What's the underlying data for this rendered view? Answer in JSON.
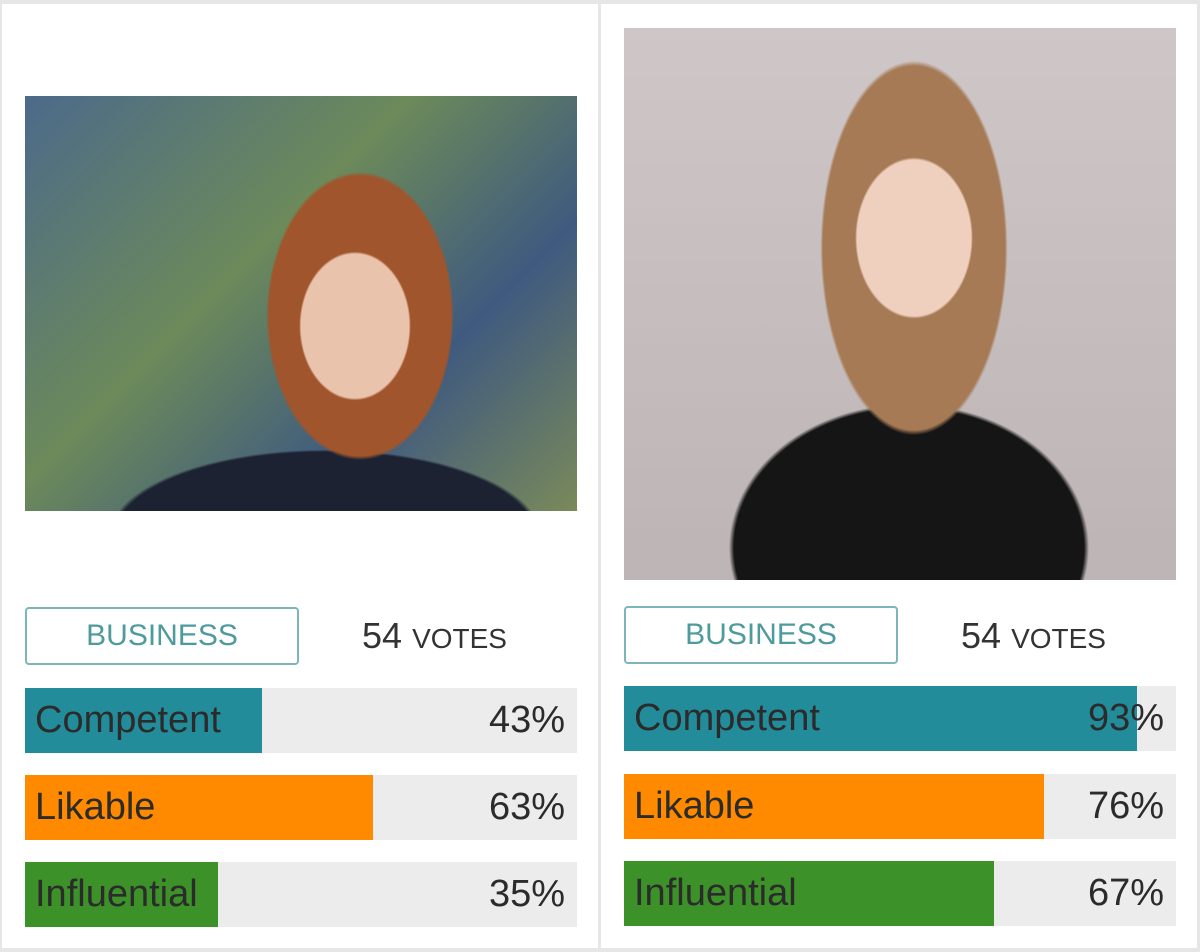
{
  "cards": [
    {
      "category": "BUSINESS",
      "votes": "54",
      "votes_label": "VOTES",
      "bars": [
        {
          "label": "Competent",
          "percent": 43,
          "text": "43%",
          "color": "#238c9b"
        },
        {
          "label": "Likable",
          "percent": 63,
          "text": "63%",
          "color": "#ff8a00"
        },
        {
          "label": "Influential",
          "percent": 35,
          "text": "35%",
          "color": "#3c9228"
        }
      ]
    },
    {
      "category": "BUSINESS",
      "votes": "54",
      "votes_label": "VOTES",
      "bars": [
        {
          "label": "Competent",
          "percent": 93,
          "text": "93%",
          "color": "#238c9b"
        },
        {
          "label": "Likable",
          "percent": 76,
          "text": "76%",
          "color": "#ff8a00"
        },
        {
          "label": "Influential",
          "percent": 67,
          "text": "67%",
          "color": "#3c9228"
        }
      ]
    }
  ]
}
